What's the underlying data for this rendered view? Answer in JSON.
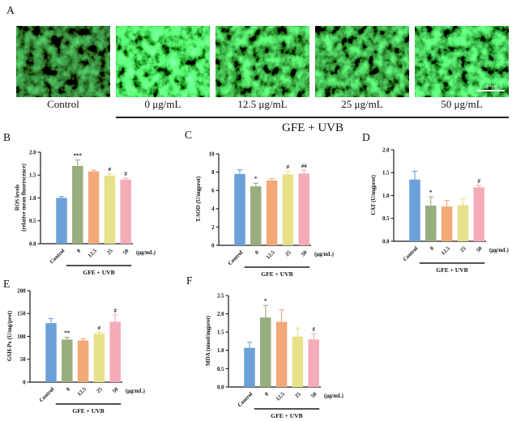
{
  "panel_labels": {
    "A": "A",
    "B": "B",
    "C": "C",
    "D": "D",
    "E": "E",
    "F": "F"
  },
  "panel_a": {
    "image_labels": [
      "Control",
      "0 μg/mL",
      "12.5 μg/mL",
      "25 μg/mL",
      "50 μg/mL"
    ],
    "scale_bar_label": "200 μm",
    "group_label": "GFE + UVB"
  },
  "bar_colors": [
    "#6CA0D8",
    "#98AE7F",
    "#F3A878",
    "#E7E289",
    "#F5ACB8"
  ],
  "axis_color": "#1a1a1a",
  "chart_data": [
    {
      "panel": "B",
      "type": "bar",
      "ylabel_lines": [
        "ROS levels",
        "(relative mean fluorescence)"
      ],
      "categories": [
        "Control",
        "0",
        "12.5",
        "25",
        "50"
      ],
      "values": [
        1.0,
        1.7,
        1.58,
        1.49,
        1.4
      ],
      "errors": [
        0.03,
        0.13,
        0.03,
        0.04,
        0.03
      ],
      "annotations": [
        "",
        "***",
        "",
        "#",
        "#"
      ],
      "ylim": [
        0,
        2.0
      ],
      "yticks": [
        0,
        0.5,
        1.0,
        1.5,
        2.0
      ],
      "ytick_labels": [
        "0.0",
        "0.5",
        "1.0",
        "1.5",
        "2.0"
      ],
      "x_unit_label": "(μg/mL)",
      "group_bracket": {
        "label": "GFE + UVB",
        "from": 1,
        "to": 4
      }
    },
    {
      "panel": "C",
      "type": "bar",
      "ylabel_lines": [
        "T-SOD (U/mgprot)"
      ],
      "categories": [
        "Control",
        "0",
        "12.5",
        "25",
        "50"
      ],
      "values": [
        7.8,
        6.45,
        7.1,
        7.75,
        7.85
      ],
      "errors": [
        0.45,
        0.35,
        0.2,
        0.35,
        0.35
      ],
      "annotations": [
        "",
        "*",
        "",
        "#",
        "##"
      ],
      "ylim": [
        0,
        10
      ],
      "yticks": [
        0,
        2,
        4,
        6,
        8,
        10
      ],
      "ytick_labels": [
        "0",
        "2",
        "4",
        "6",
        "8",
        "10"
      ],
      "x_unit_label": "(μg/mL)",
      "group_bracket": {
        "label": "GFE + UVB",
        "from": 1,
        "to": 4
      }
    },
    {
      "panel": "D",
      "type": "bar",
      "ylabel_lines": [
        "CAT (U/mgprot)"
      ],
      "categories": [
        "Control",
        "0",
        "12.5",
        "25",
        "50"
      ],
      "values": [
        1.35,
        0.78,
        0.76,
        0.79,
        1.18
      ],
      "errors": [
        0.18,
        0.19,
        0.13,
        0.14,
        0.04
      ],
      "annotations": [
        "",
        "*",
        "",
        "",
        "#"
      ],
      "ylim": [
        0,
        2.0
      ],
      "yticks": [
        0,
        0.5,
        1.0,
        1.5,
        2.0
      ],
      "ytick_labels": [
        "0.0",
        "0.5",
        "1.0",
        "1.5",
        "2.0"
      ],
      "x_unit_label": "(μg/mL)",
      "group_bracket": {
        "label": "GFE + UVB",
        "from": 1,
        "to": 4
      }
    },
    {
      "panel": "E",
      "type": "bar",
      "ylabel_lines": [
        "GSH-Px (U/mg/prot)"
      ],
      "categories": [
        "Control",
        "0",
        "12.5",
        "25",
        "50"
      ],
      "values": [
        129,
        93,
        91,
        106,
        132
      ],
      "errors": [
        10,
        5,
        4,
        3,
        15
      ],
      "annotations": [
        "",
        "**",
        "",
        "#",
        "#"
      ],
      "ylim": [
        0,
        200
      ],
      "yticks": [
        0,
        50,
        100,
        150,
        200
      ],
      "ytick_labels": [
        "0",
        "50",
        "100",
        "150",
        "200"
      ],
      "x_unit_label": "(μg/mL)",
      "group_bracket": {
        "label": "GFE + UVB",
        "from": 1,
        "to": 4
      }
    },
    {
      "panel": "F",
      "type": "bar",
      "ylabel_lines": [
        "MDA (nmol/mgprot)"
      ],
      "categories": [
        "Control",
        "0",
        "12.5",
        "25",
        "50"
      ],
      "values": [
        1.07,
        1.9,
        1.78,
        1.38,
        1.3
      ],
      "errors": [
        0.15,
        0.33,
        0.33,
        0.23,
        0.16
      ],
      "annotations": [
        "",
        "*",
        "",
        "",
        "#"
      ],
      "ylim": [
        0,
        2.5
      ],
      "yticks": [
        0,
        0.5,
        1.0,
        1.5,
        2.0,
        2.5
      ],
      "ytick_labels": [
        "0.0",
        "0.5",
        "1.0",
        "1.5",
        "2.0",
        "2.5"
      ],
      "x_unit_label": "(μg/mL)",
      "group_bracket": {
        "label": "GFE + UVB",
        "from": 1,
        "to": 4
      }
    }
  ]
}
